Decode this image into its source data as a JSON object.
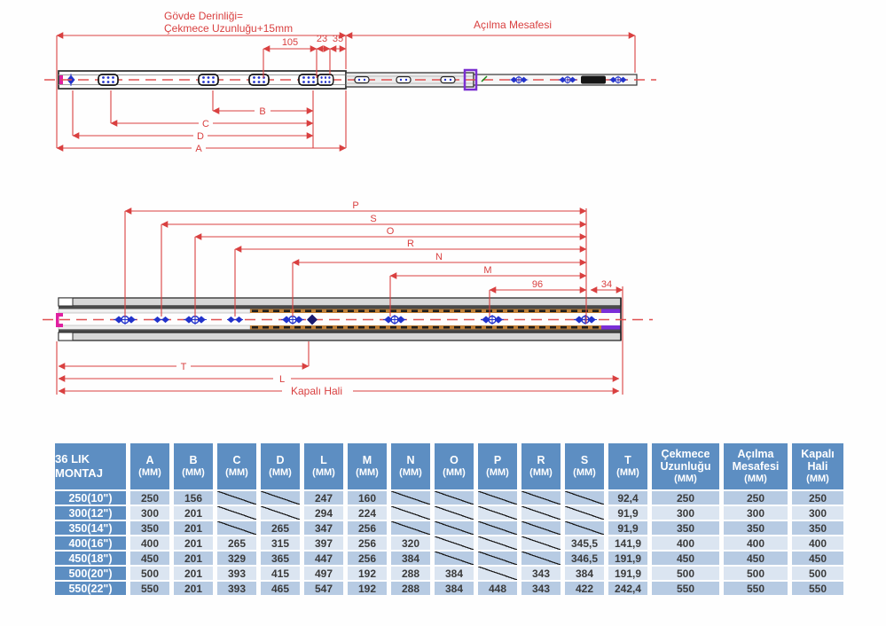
{
  "colors": {
    "dimension_red": "#d94040",
    "table_header_blue": "#5d8ec2",
    "table_row_dark": "#b7cbe3",
    "table_row_light": "#dbe5f1",
    "fastener_blue": "#2233cc",
    "bracket_purple": "#7a2fd0",
    "hook_magenta": "#e020a0",
    "member_orange": "#c08038"
  },
  "drawing_top": {
    "body_depth_label_line1": "Gövde Derinliği=",
    "body_depth_label_line2": "Çekmece Uzunluğu+15mm",
    "opening_label": "Açılma Mesafesi",
    "dims": {
      "d105": "105",
      "d23": "23",
      "d35": "35",
      "B": "B",
      "C": "C",
      "D": "D",
      "A": "A"
    }
  },
  "drawing_middle": {
    "dims": {
      "P": "P",
      "S": "S",
      "O": "O",
      "R": "R",
      "N": "N",
      "M": "M",
      "d96": "96",
      "d34": "34",
      "T": "T",
      "L": "L"
    },
    "closed_label": "Kapalı Hali"
  },
  "table": {
    "corner_header": "36 LIK\nMONTAJ",
    "slash_marker": "/",
    "columns": [
      {
        "label": "A",
        "unit": "(MM)"
      },
      {
        "label": "B",
        "unit": "(MM)"
      },
      {
        "label": "C",
        "unit": "(MM)"
      },
      {
        "label": "D",
        "unit": "(MM)"
      },
      {
        "label": "L",
        "unit": "(MM)"
      },
      {
        "label": "M",
        "unit": "(MM)"
      },
      {
        "label": "N",
        "unit": "(MM)"
      },
      {
        "label": "O",
        "unit": "(MM)"
      },
      {
        "label": "P",
        "unit": "(MM)"
      },
      {
        "label": "R",
        "unit": "(MM)"
      },
      {
        "label": "S",
        "unit": "(MM)"
      },
      {
        "label": "T",
        "unit": "(MM)"
      },
      {
        "label": "Çekmece Uzunluğu",
        "unit": "(MM)"
      },
      {
        "label": "Açılma Mesafesi",
        "unit": "(MM)"
      },
      {
        "label": "Kapalı Hali",
        "unit": "(MM)"
      }
    ],
    "rows": [
      {
        "label": "250(10\")",
        "values": [
          "250",
          "156",
          "/",
          "/",
          "247",
          "160",
          "/",
          "/",
          "/",
          "/",
          "/",
          "92,4",
          "250",
          "250",
          "250"
        ]
      },
      {
        "label": "300(12\")",
        "values": [
          "300",
          "201",
          "/",
          "/",
          "294",
          "224",
          "/",
          "/",
          "/",
          "/",
          "/",
          "91,9",
          "300",
          "300",
          "300"
        ]
      },
      {
        "label": "350(14\")",
        "values": [
          "350",
          "201",
          "/",
          "265",
          "347",
          "256",
          "/",
          "/",
          "/",
          "/",
          "/",
          "91,9",
          "350",
          "350",
          "350"
        ]
      },
      {
        "label": "400(16\")",
        "values": [
          "400",
          "201",
          "265",
          "315",
          "397",
          "256",
          "320",
          "/",
          "/",
          "/",
          "345,5",
          "141,9",
          "400",
          "400",
          "400"
        ]
      },
      {
        "label": "450(18\")",
        "values": [
          "450",
          "201",
          "329",
          "365",
          "447",
          "256",
          "384",
          "/",
          "/",
          "/",
          "346,5",
          "191,9",
          "450",
          "450",
          "450"
        ]
      },
      {
        "label": "500(20\")",
        "values": [
          "500",
          "201",
          "393",
          "415",
          "497",
          "192",
          "288",
          "384",
          "/",
          "343",
          "384",
          "191,9",
          "500",
          "500",
          "500"
        ]
      },
      {
        "label": "550(22\")",
        "values": [
          "550",
          "201",
          "393",
          "465",
          "547",
          "192",
          "288",
          "384",
          "448",
          "343",
          "422",
          "242,4",
          "550",
          "550",
          "550"
        ]
      }
    ]
  }
}
